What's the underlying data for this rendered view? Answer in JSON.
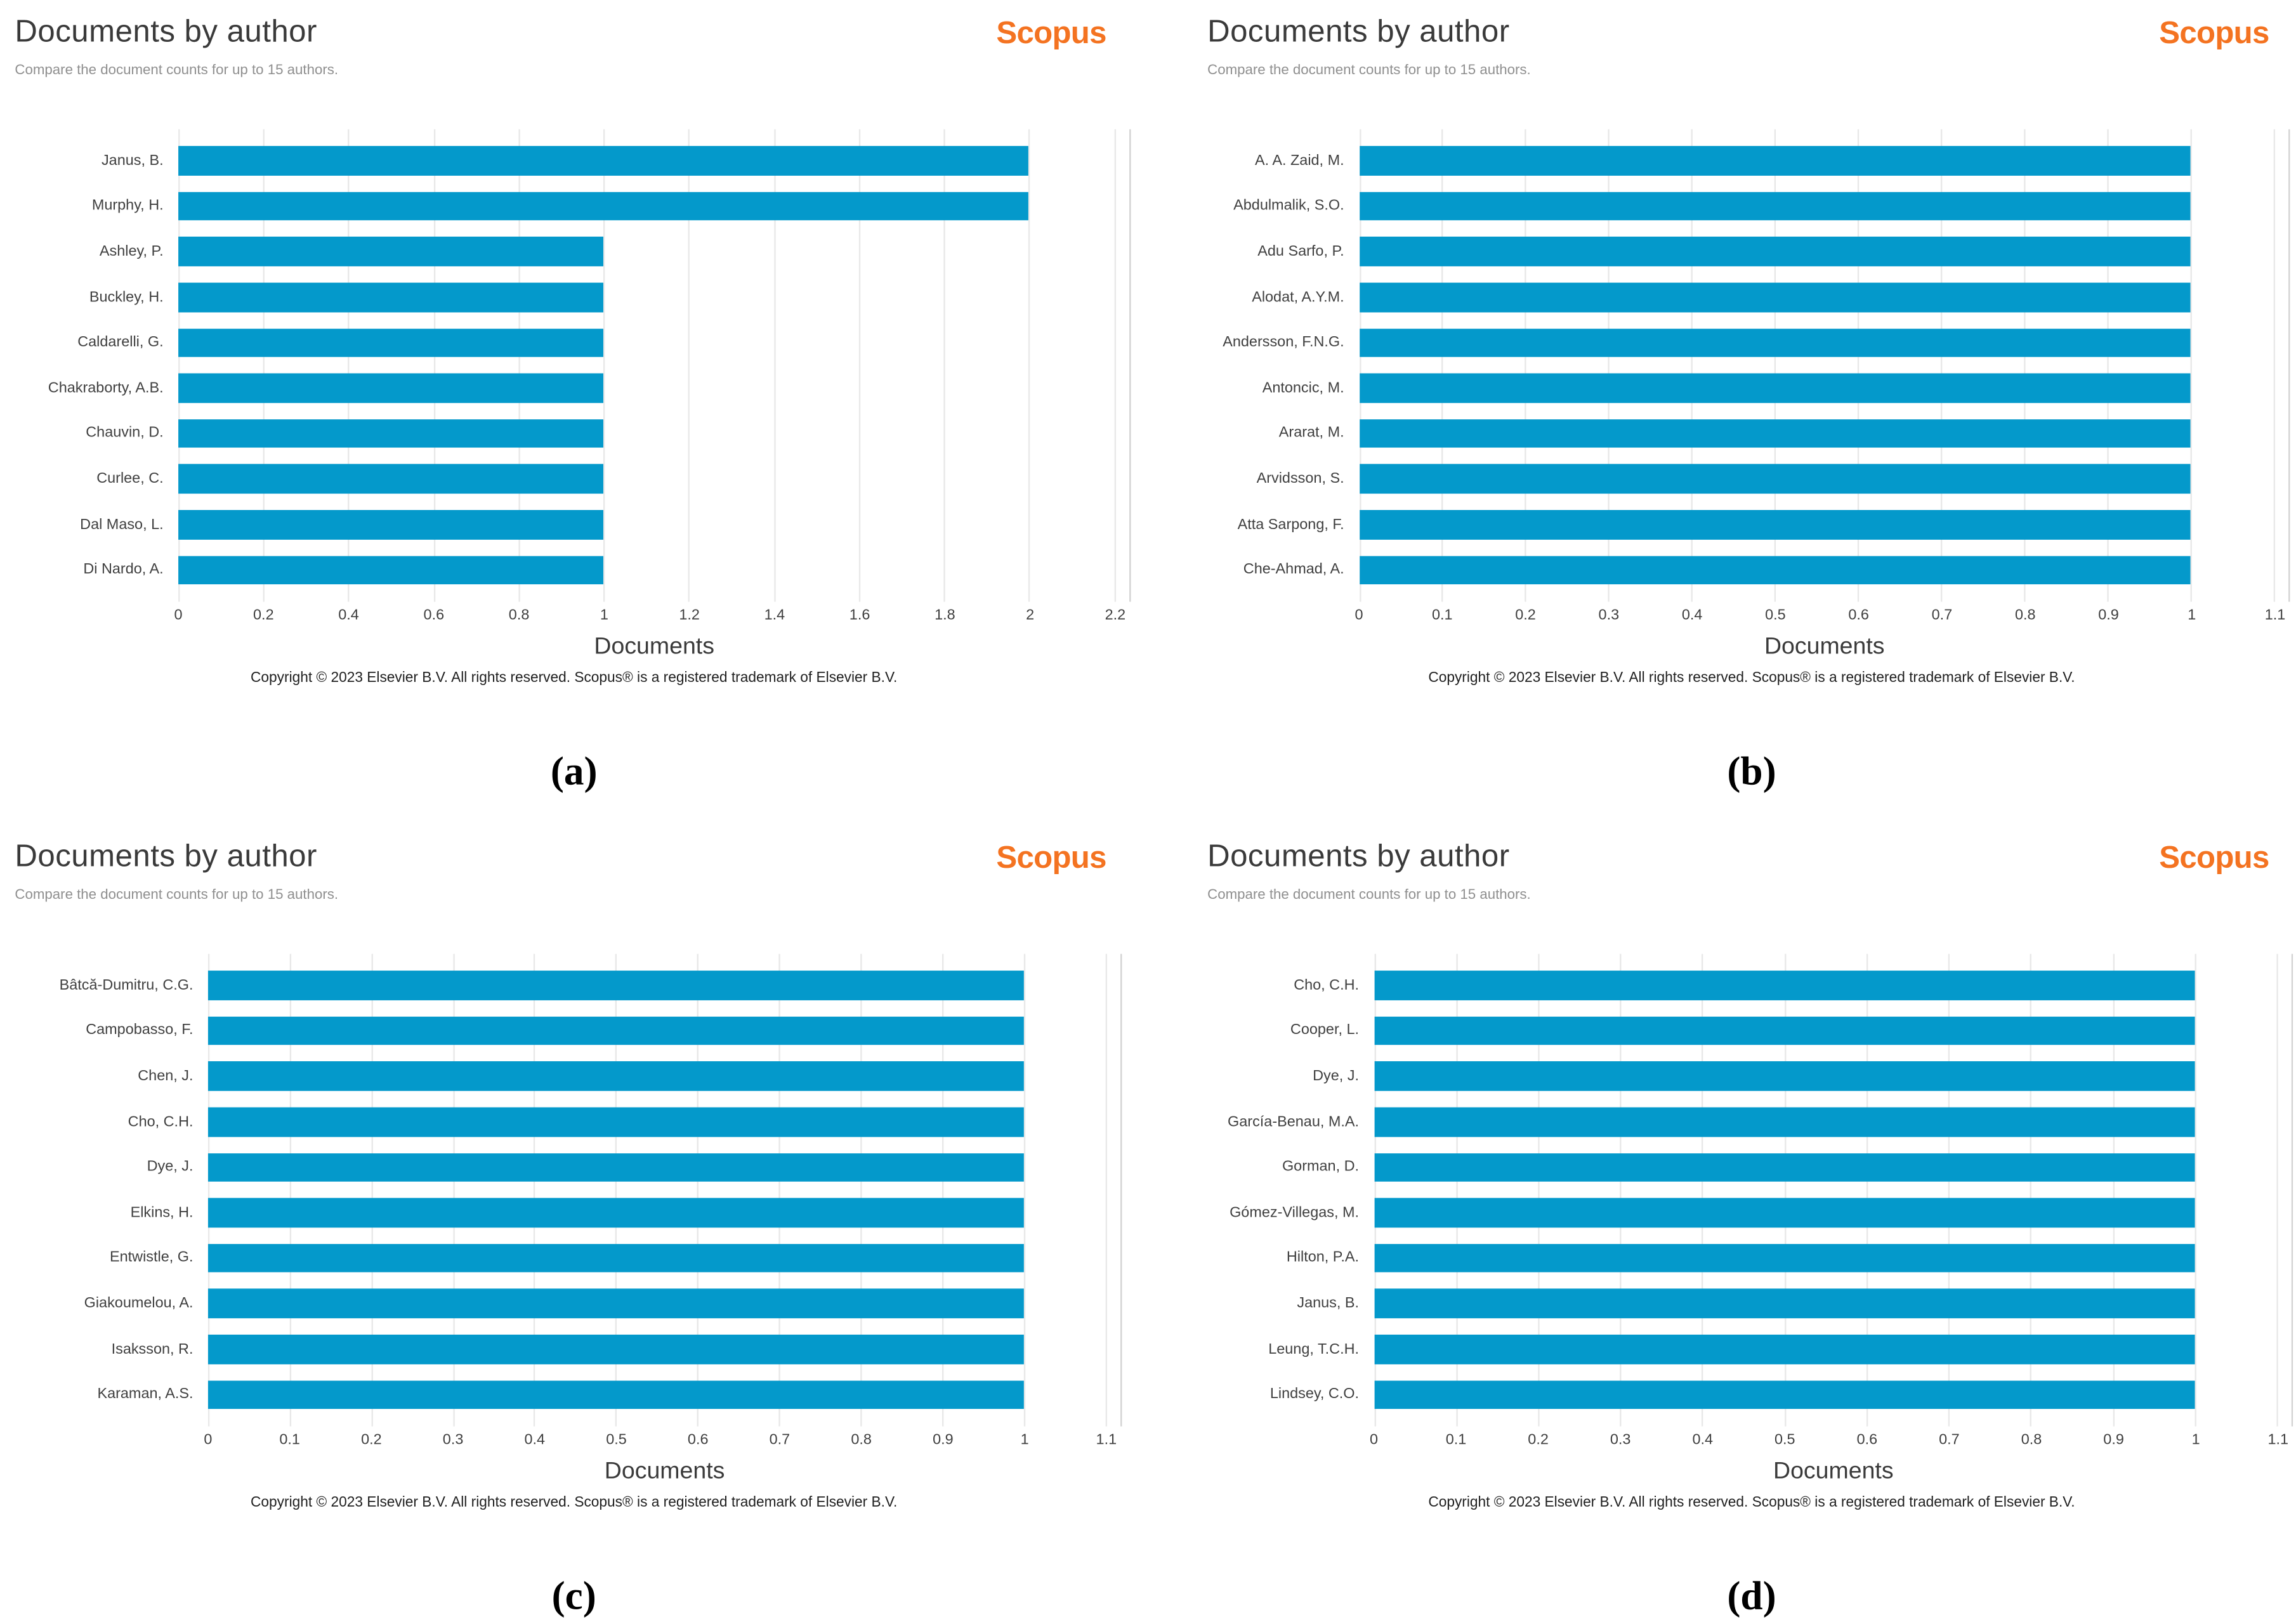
{
  "page": {
    "background": "#ffffff"
  },
  "brand": {
    "scopus_orange": "#f47321",
    "bar_blue": "#0499cb",
    "grid_gray": "#e8e8e8",
    "spine_gray": "#d2d2d2"
  },
  "chart_data": [
    {
      "type": "bar",
      "orientation": "horizontal",
      "panel_letter": "(a)",
      "title": "Documents by author",
      "subtitle": "Compare the document counts for up to 15 authors.",
      "brand": "Scopus",
      "xlabel": "Documents",
      "categories": [
        "Janus, B.",
        "Murphy, H.",
        "Ashley, P.",
        "Buckley, H.",
        "Caldarelli, G.",
        "Chakraborty, A.B.",
        "Chauvin, D.",
        "Curlee, C.",
        "Dal Maso, L.",
        "Di Nardo, A."
      ],
      "values": [
        2,
        2,
        1,
        1,
        1,
        1,
        1,
        1,
        1,
        1
      ],
      "xlim": [
        0,
        2.2
      ],
      "xtick_labels": [
        "0",
        "0.2",
        "0.4",
        "0.6",
        "0.8",
        "1",
        "1.2",
        "1.4",
        "1.6",
        "1.8",
        "2",
        "2.2"
      ],
      "grid": true,
      "legend": false,
      "copyright": "Copyright © 2023 Elsevier B.V. All rights reserved. Scopus® is a registered trademark of Elsevier B.V."
    },
    {
      "type": "bar",
      "orientation": "horizontal",
      "panel_letter": "(b)",
      "title": "Documents by author",
      "subtitle": "Compare the document counts for up to 15 authors.",
      "brand": "Scopus",
      "xlabel": "Documents",
      "categories": [
        "A. A. Zaid, M.",
        "Abdulmalik, S.O.",
        "Adu Sarfo, P.",
        "Alodat, A.Y.M.",
        "Andersson, F.N.G.",
        "Antoncic, M.",
        "Ararat, M.",
        "Arvidsson, S.",
        "Atta Sarpong, F.",
        "Che-Ahmad, A."
      ],
      "values": [
        1,
        1,
        1,
        1,
        1,
        1,
        1,
        1,
        1,
        1
      ],
      "xlim": [
        0,
        1.1
      ],
      "xtick_labels": [
        "0",
        "0.1",
        "0.2",
        "0.3",
        "0.4",
        "0.5",
        "0.6",
        "0.7",
        "0.8",
        "0.9",
        "1",
        "1.1"
      ],
      "grid": true,
      "legend": false,
      "copyright": "Copyright © 2023 Elsevier B.V. All rights reserved. Scopus® is a registered trademark of Elsevier B.V."
    },
    {
      "type": "bar",
      "orientation": "horizontal",
      "panel_letter": "(c)",
      "title": "Documents by author",
      "subtitle": "Compare the document counts for up to 15 authors.",
      "brand": "Scopus",
      "xlabel": "Documents",
      "categories": [
        "Bâtcă-Dumitru, C.G.",
        "Campobasso, F.",
        "Chen, J.",
        "Cho, C.H.",
        "Dye, J.",
        "Elkins, H.",
        "Entwistle, G.",
        "Giakoumelou, A.",
        "Isaksson, R.",
        "Karaman, A.S."
      ],
      "values": [
        1,
        1,
        1,
        1,
        1,
        1,
        1,
        1,
        1,
        1
      ],
      "xlim": [
        0,
        1.1
      ],
      "xtick_labels": [
        "0",
        "0.1",
        "0.2",
        "0.3",
        "0.4",
        "0.5",
        "0.6",
        "0.7",
        "0.8",
        "0.9",
        "1",
        "1.1"
      ],
      "grid": true,
      "legend": false,
      "copyright": "Copyright © 2023 Elsevier B.V. All rights reserved. Scopus® is a registered trademark of Elsevier B.V."
    },
    {
      "type": "bar",
      "orientation": "horizontal",
      "panel_letter": "(d)",
      "title": "Documents by author",
      "subtitle": "Compare the document counts for up to 15 authors.",
      "brand": "Scopus",
      "xlabel": "Documents",
      "categories": [
        "Cho, C.H.",
        "Cooper, L.",
        "Dye, J.",
        "García-Benau, M.A.",
        "Gorman, D.",
        "Gómez-Villegas, M.",
        "Hilton, P.A.",
        "Janus, B.",
        "Leung, T.C.H.",
        "Lindsey, C.O."
      ],
      "values": [
        1,
        1,
        1,
        1,
        1,
        1,
        1,
        1,
        1,
        1
      ],
      "xlim": [
        0,
        1.1
      ],
      "xtick_labels": [
        "0",
        "0.1",
        "0.2",
        "0.3",
        "0.4",
        "0.5",
        "0.6",
        "0.7",
        "0.8",
        "0.9",
        "1",
        "1.1"
      ],
      "grid": true,
      "legend": false,
      "copyright": "Copyright © 2023 Elsevier B.V. All rights reserved. Scopus® is a registered trademark of Elsevier B.V."
    }
  ]
}
